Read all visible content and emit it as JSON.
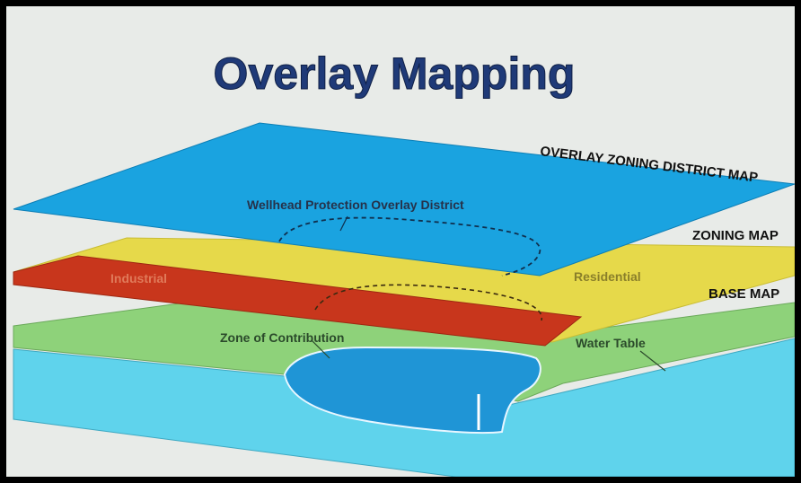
{
  "title": "Overlay Mapping",
  "layers": {
    "overlay": "OVERLAY ZONING DISTRICT MAP",
    "zoning": "ZONING MAP",
    "base": "BASE MAP"
  },
  "labels": {
    "wellhead": "Wellhead Protection Overlay District",
    "industrial": "Industrial",
    "residential": "Residential",
    "zone_of_contribution": "Zone of Contribution",
    "water_table": "Water Table"
  },
  "colors": {
    "overlay_layer": "#1aa3e0",
    "zoning_yellow": "#e6d94a",
    "zoning_red": "#c8361c",
    "base_green": "#8ed27a",
    "water": "#5fd3ec",
    "aquifer_zone": "#1f95d6",
    "title": "#1f3a78"
  }
}
